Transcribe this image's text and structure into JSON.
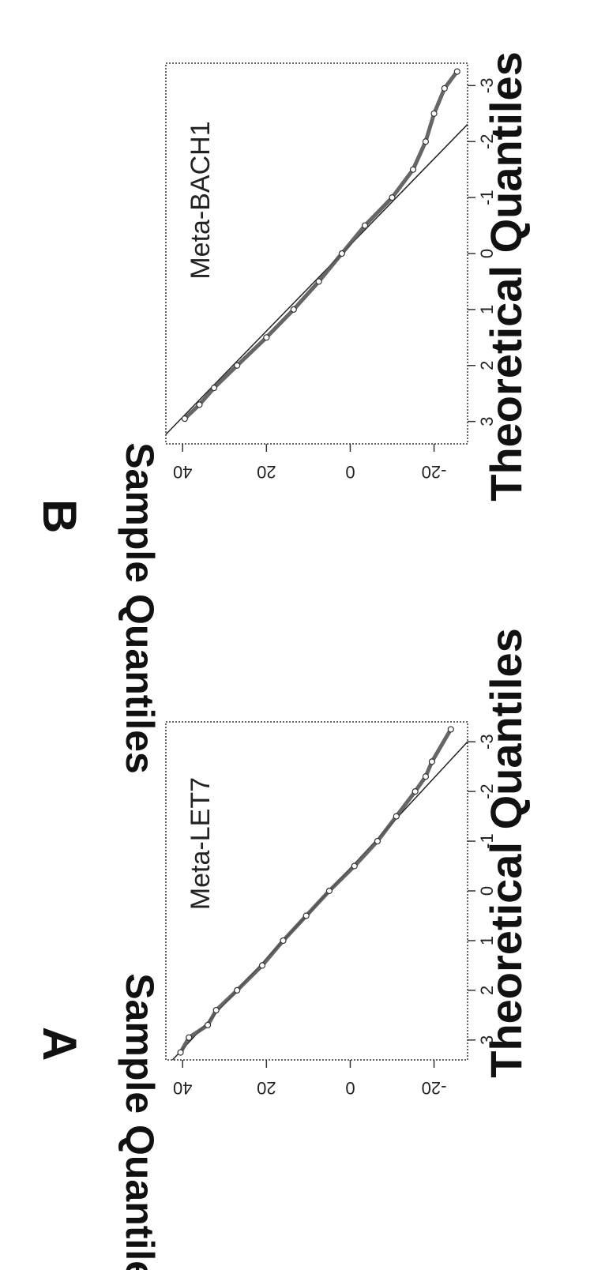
{
  "chart_data": [
    {
      "panel": "A",
      "type": "scatter",
      "title": "Meta-LET7",
      "xlabel": "Theoretical Quantiles",
      "ylabel": "Sample Quantiles",
      "xlim": [
        -3.4,
        3.4
      ],
      "ylim": [
        -28,
        44
      ],
      "xticks": [
        "-3",
        "-2",
        "-1",
        "0",
        "1",
        "2",
        "3"
      ],
      "yticks": [
        "-20",
        "0",
        "20",
        "40"
      ],
      "reference_line": {
        "intercept": 5.0,
        "slope": 11.0
      },
      "points": [
        {
          "x": -3.25,
          "y": -24.0
        },
        {
          "x": -2.6,
          "y": -19.5
        },
        {
          "x": -2.3,
          "y": -18.0
        },
        {
          "x": -2.0,
          "y": -15.5
        },
        {
          "x": -1.5,
          "y": -11.0
        },
        {
          "x": -1.0,
          "y": -6.5
        },
        {
          "x": -0.5,
          "y": -1.0
        },
        {
          "x": 0.0,
          "y": 5.0
        },
        {
          "x": 0.5,
          "y": 10.5
        },
        {
          "x": 1.0,
          "y": 16.0
        },
        {
          "x": 1.5,
          "y": 21.0
        },
        {
          "x": 2.0,
          "y": 27.0
        },
        {
          "x": 2.4,
          "y": 32.0
        },
        {
          "x": 2.7,
          "y": 34.0
        },
        {
          "x": 2.95,
          "y": 38.5
        },
        {
          "x": 3.25,
          "y": 40.5
        }
      ]
    },
    {
      "panel": "B",
      "type": "scatter",
      "title": "Meta-BACH1",
      "xlabel": "Theoretical Quantiles",
      "ylabel": "Sample Quantiles",
      "xlim": [
        -3.4,
        3.4
      ],
      "ylim": [
        -28,
        44
      ],
      "xticks": [
        "-3",
        "-2",
        "-1",
        "0",
        "1",
        "2",
        "3"
      ],
      "yticks": [
        "-20",
        "0",
        "20",
        "40"
      ],
      "reference_line": {
        "intercept": 2.0,
        "slope": 13.0
      },
      "points": [
        {
          "x": -3.25,
          "y": -25.5
        },
        {
          "x": -2.95,
          "y": -22.5
        },
        {
          "x": -2.5,
          "y": -20.0
        },
        {
          "x": -2.0,
          "y": -18.0
        },
        {
          "x": -1.5,
          "y": -15.0
        },
        {
          "x": -1.0,
          "y": -10.0
        },
        {
          "x": -0.5,
          "y": -3.5
        },
        {
          "x": 0.0,
          "y": 2.0
        },
        {
          "x": 0.5,
          "y": 7.5
        },
        {
          "x": 1.0,
          "y": 13.5
        },
        {
          "x": 1.5,
          "y": 20.0
        },
        {
          "x": 2.0,
          "y": 27.0
        },
        {
          "x": 2.4,
          "y": 32.5
        },
        {
          "x": 2.7,
          "y": 36.0
        },
        {
          "x": 2.95,
          "y": 39.5
        }
      ]
    }
  ]
}
